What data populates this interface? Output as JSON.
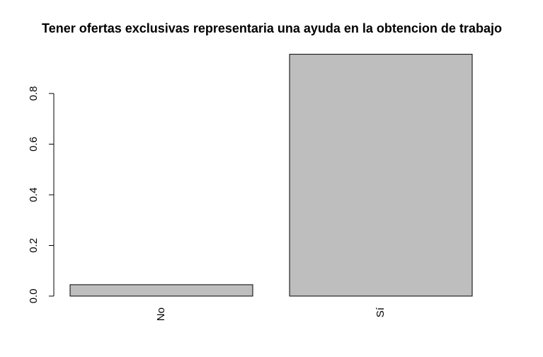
{
  "chart_data": {
    "type": "bar",
    "title": "Tener ofertas exclusivas representaria una ayuda en la obtencion de trabajo",
    "categories": [
      "No",
      "Sí"
    ],
    "values": [
      0.045,
      0.955
    ],
    "color": "#bebebe",
    "ylim": [
      0,
      0.955
    ],
    "yticks": [
      {
        "value": 0,
        "label": "0.0"
      },
      0.2,
      0.4,
      0.6,
      0.8
    ],
    "grid": false
  }
}
